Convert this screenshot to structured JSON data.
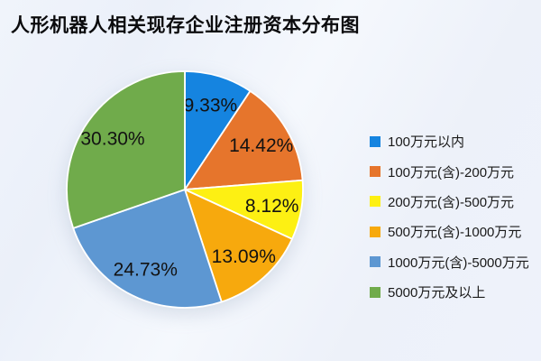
{
  "title": "人形机器人相关现存企业注册资本分布图",
  "chart_data": {
    "type": "pie",
    "title": "人形机器人相关现存企业注册资本分布图",
    "categories": [
      "100万元以内",
      "100万元(含)-200万元",
      "200万元(含)-500万元",
      "500万元(含)-1000万元",
      "1000万元(含)-5000万元",
      "5000万元及以上"
    ],
    "values": [
      9.33,
      14.42,
      8.12,
      13.09,
      24.73,
      30.3
    ],
    "labels": [
      "9.33%",
      "14.42%",
      "8.12%",
      "13.09%",
      "24.73%",
      "30.30%"
    ],
    "colors": [
      "#1584e0",
      "#e6752c",
      "#fdf013",
      "#f7a90d",
      "#5d97d2",
      "#70ab4b"
    ],
    "start_angle_deg": -90,
    "direction": "clockwise",
    "legend_position": "right",
    "slice_label_color": "#121212",
    "slice_divider_color": "#ffffff",
    "background_color": "#eef2fa"
  }
}
